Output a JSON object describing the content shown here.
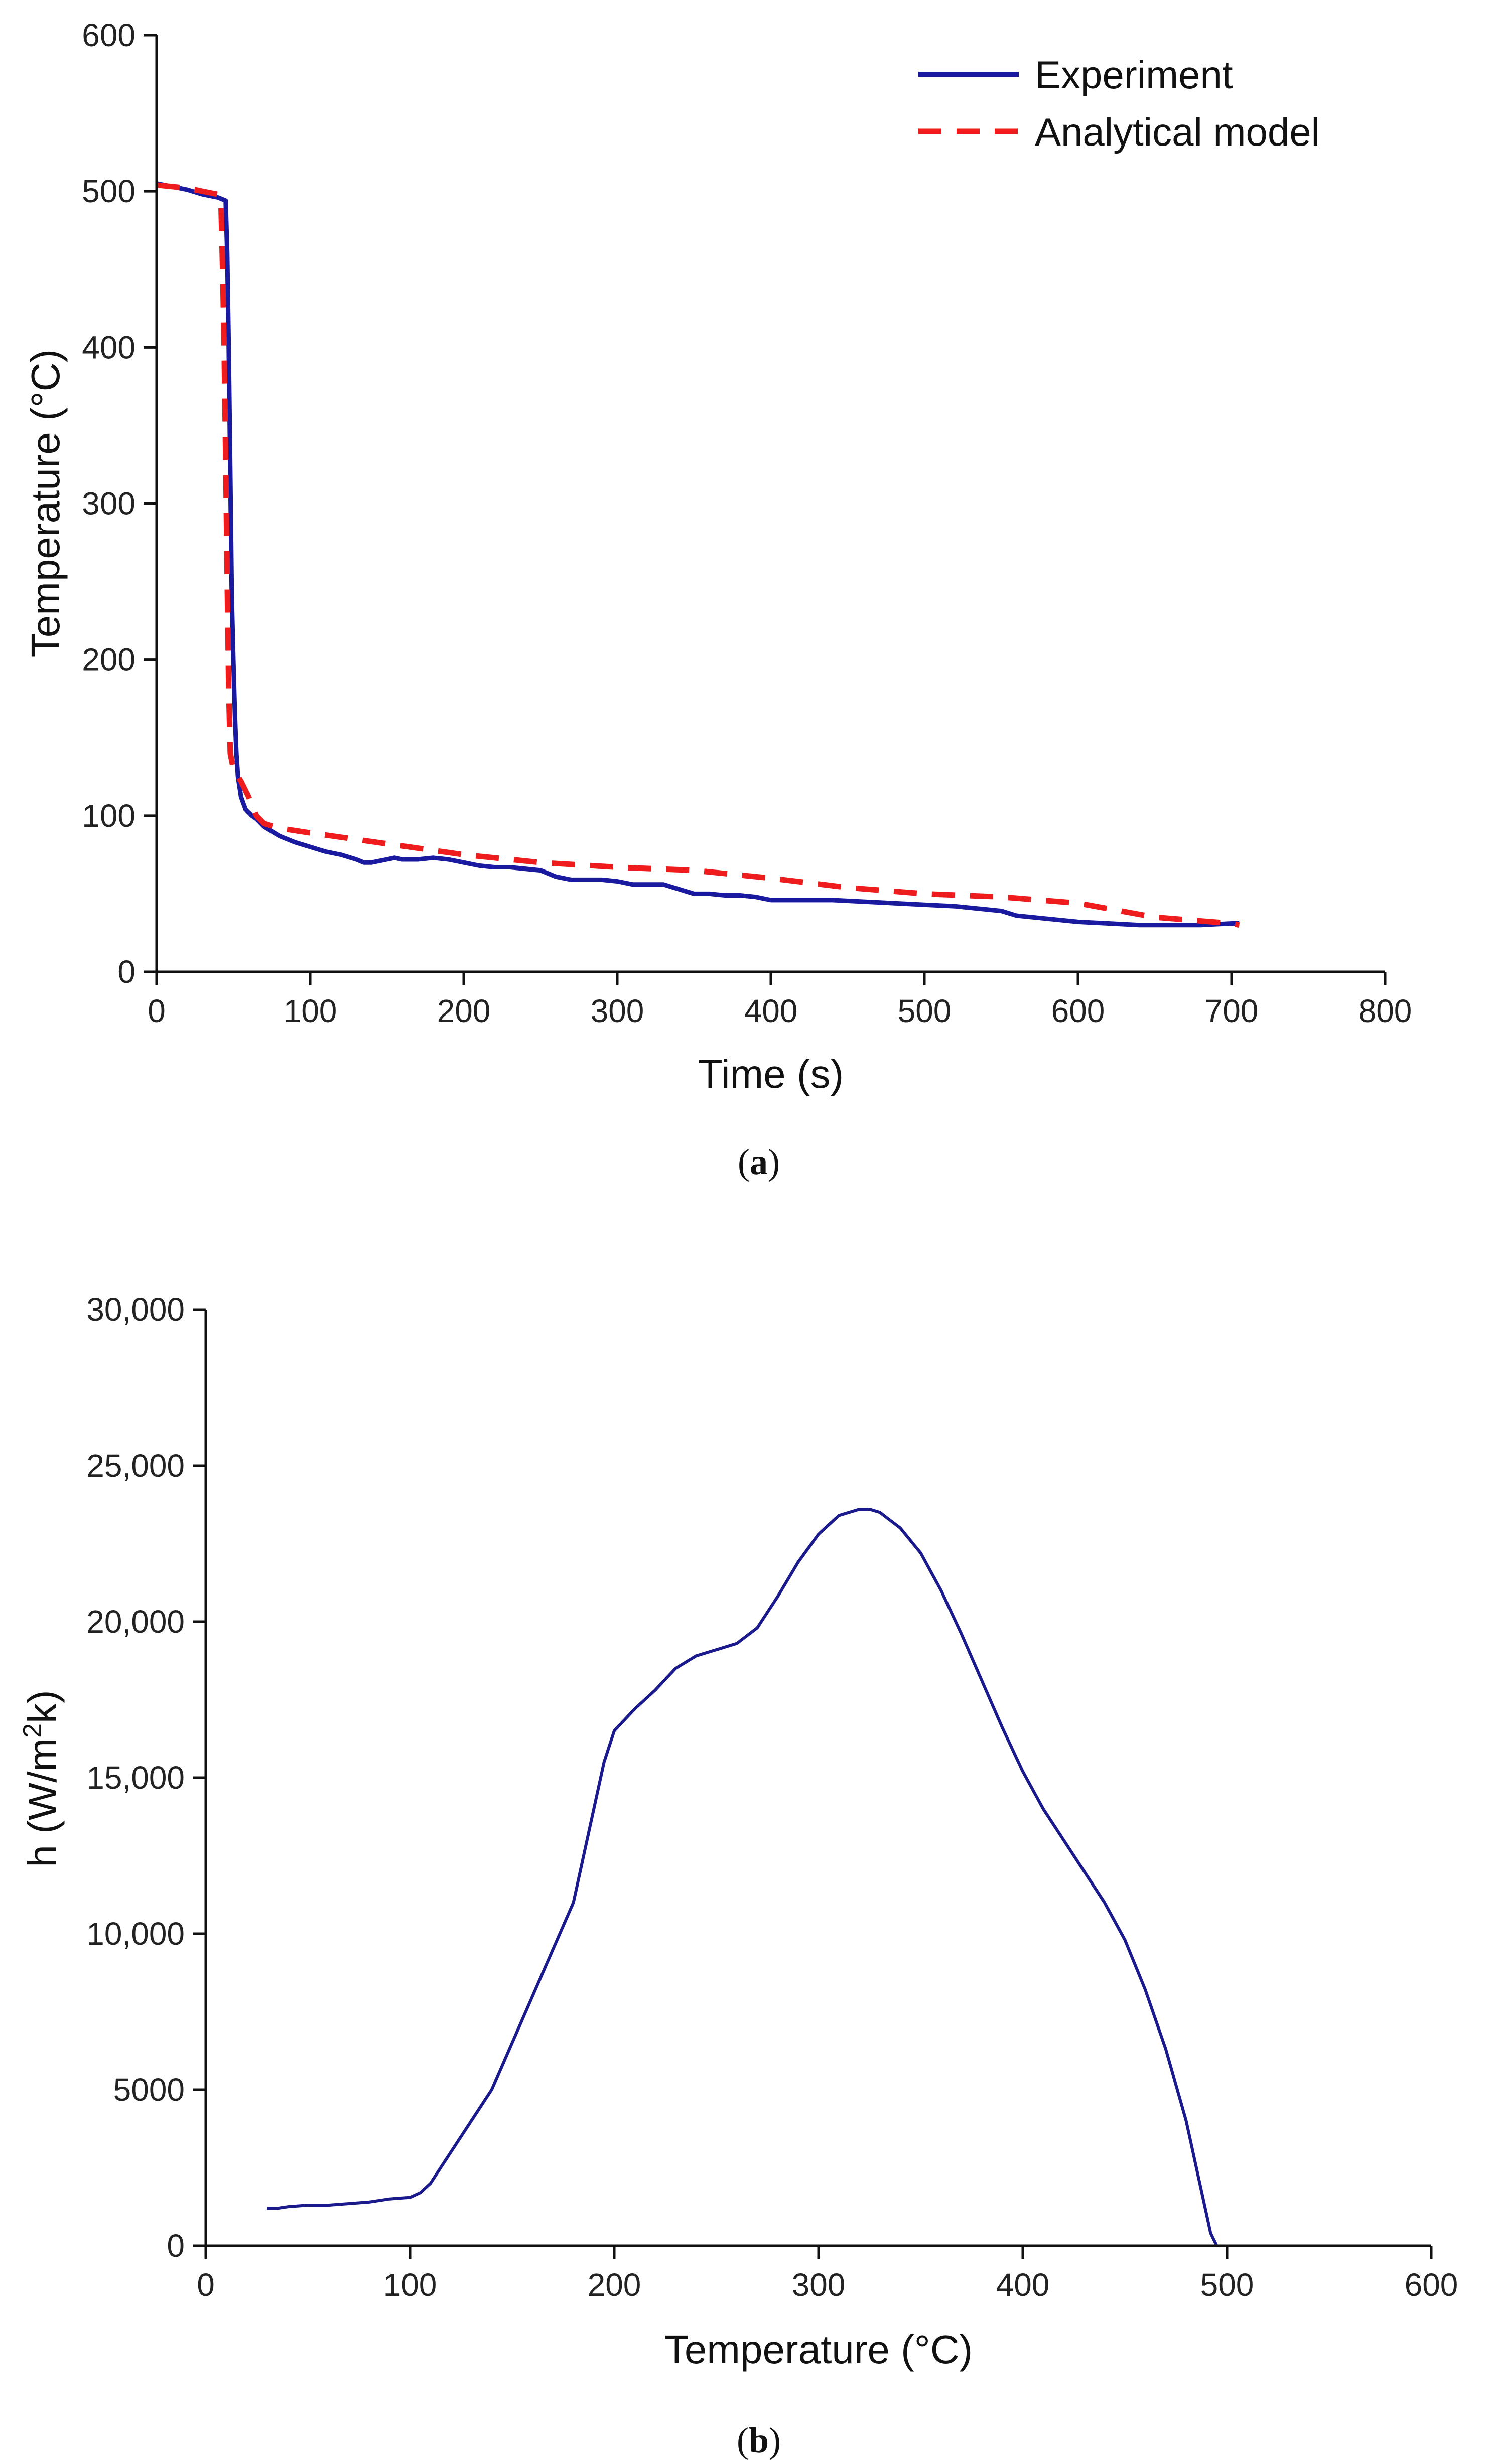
{
  "chart_data": [
    {
      "type": "line",
      "panel": "a",
      "caption_label": "a",
      "xlabel": "Time (s)",
      "ylabel": "Temperature (°C)",
      "xlim": [
        0,
        800
      ],
      "ylim": [
        0,
        600
      ],
      "xticks": [
        0,
        100,
        200,
        300,
        400,
        500,
        600,
        700,
        800
      ],
      "yticks": [
        0,
        100,
        200,
        300,
        400,
        500,
        600
      ],
      "xtick_labels": [
        "0",
        "100",
        "200",
        "300",
        "400",
        "500",
        "600",
        "700",
        "800"
      ],
      "ytick_labels": [
        "0",
        "100",
        "200",
        "300",
        "400",
        "500",
        "600"
      ],
      "grid": false,
      "legend_position": "top-right",
      "series": [
        {
          "name": "Experiment",
          "style": "solid",
          "color": "#1a1aa0",
          "x": [
            0,
            10,
            20,
            30,
            40,
            45,
            46,
            47,
            48,
            49,
            50,
            51,
            52,
            53,
            55,
            58,
            62,
            65,
            70,
            80,
            90,
            100,
            110,
            120,
            130,
            135,
            140,
            150,
            155,
            160,
            170,
            180,
            190,
            200,
            210,
            220,
            230,
            240,
            250,
            260,
            270,
            280,
            290,
            300,
            310,
            320,
            330,
            340,
            350,
            360,
            370,
            380,
            390,
            400,
            420,
            440,
            460,
            480,
            500,
            520,
            540,
            550,
            560,
            580,
            600,
            620,
            640,
            660,
            680,
            700,
            705
          ],
          "y": [
            505,
            503,
            501,
            498,
            496,
            494,
            460,
            400,
            320,
            240,
            200,
            165,
            140,
            125,
            112,
            104,
            100,
            98,
            93,
            87,
            83,
            80,
            77,
            75,
            72,
            70,
            70,
            72,
            73,
            72,
            72,
            73,
            72,
            70,
            68,
            67,
            67,
            66,
            65,
            61,
            59,
            59,
            59,
            58,
            56,
            56,
            56,
            53,
            50,
            50,
            49,
            49,
            48,
            46,
            46,
            46,
            45,
            44,
            43,
            42,
            40,
            39,
            36,
            34,
            32,
            31,
            30,
            30,
            30,
            31,
            31
          ]
        },
        {
          "name": "Analytical model",
          "style": "dashed",
          "color": "#ee1c1c",
          "x": [
            0,
            10,
            20,
            30,
            40,
            42,
            43,
            44,
            45,
            46,
            47,
            48,
            50,
            55,
            60,
            65,
            70,
            80,
            100,
            150,
            200,
            250,
            300,
            350,
            400,
            450,
            500,
            550,
            600,
            650,
            700,
            705
          ],
          "y": [
            504,
            503,
            502,
            500,
            498,
            490,
            450,
            400,
            330,
            250,
            180,
            140,
            130,
            122,
            112,
            100,
            95,
            92,
            89,
            82,
            75,
            70,
            67,
            65,
            60,
            54,
            50,
            48,
            44,
            35,
            31,
            30
          ]
        }
      ]
    },
    {
      "type": "line",
      "panel": "b",
      "caption_label": "b",
      "xlabel": "Temperature (°C)",
      "ylabel_main": "h (W/m",
      "ylabel_sup": "2",
      "ylabel_end": "k)",
      "xlim": [
        0,
        600
      ],
      "ylim": [
        0,
        30000
      ],
      "xticks": [
        0,
        100,
        200,
        300,
        400,
        500,
        600
      ],
      "yticks": [
        0,
        5000,
        10000,
        15000,
        20000,
        25000,
        30000
      ],
      "xtick_labels": [
        "0",
        "100",
        "200",
        "300",
        "400",
        "500",
        "600"
      ],
      "ytick_labels": [
        "0",
        "5000",
        "10,000",
        "15,000",
        "20,000",
        "25,000",
        "30,000"
      ],
      "grid": false,
      "series": [
        {
          "name": "h",
          "style": "solid",
          "color": "#1a1a8c",
          "x": [
            30,
            35,
            40,
            50,
            60,
            70,
            80,
            90,
            100,
            105,
            110,
            115,
            120,
            130,
            140,
            150,
            160,
            170,
            180,
            190,
            195,
            200,
            210,
            220,
            230,
            240,
            250,
            260,
            270,
            280,
            290,
            300,
            310,
            320,
            325,
            330,
            340,
            350,
            360,
            370,
            380,
            390,
            400,
            410,
            420,
            430,
            440,
            450,
            460,
            470,
            480,
            485,
            490,
            492,
            495
          ],
          "y": [
            1200,
            1200,
            1250,
            1300,
            1300,
            1350,
            1400,
            1500,
            1550,
            1700,
            2000,
            2500,
            3000,
            4000,
            5000,
            6500,
            8000,
            9500,
            11000,
            14000,
            15500,
            16500,
            17200,
            17800,
            18500,
            18900,
            19100,
            19300,
            19800,
            20800,
            21900,
            22800,
            23400,
            23600,
            23600,
            23500,
            23000,
            22200,
            21000,
            19600,
            18100,
            16600,
            15200,
            14000,
            13000,
            12000,
            11000,
            9800,
            8200,
            6300,
            4000,
            2500,
            1000,
            400,
            0
          ]
        }
      ]
    }
  ]
}
